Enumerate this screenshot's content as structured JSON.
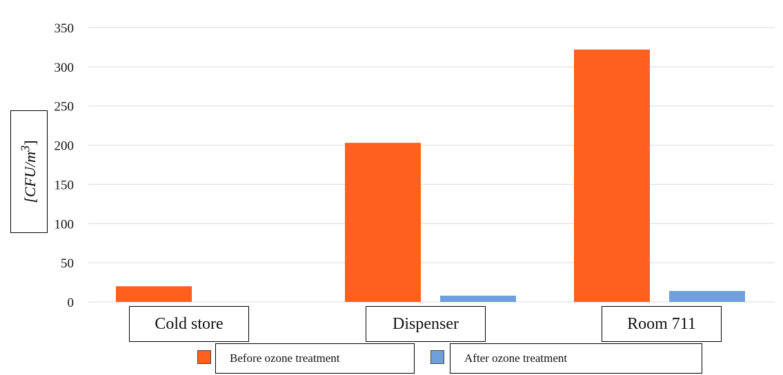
{
  "chart_data": {
    "type": "bar",
    "categories": [
      "Cold store",
      "Dispenser",
      "Room 711"
    ],
    "series": [
      {
        "name": "Before ozone treatment",
        "values": [
          20,
          203,
          322
        ],
        "color": "#ff5f1f"
      },
      {
        "name": "After ozone treatment",
        "values": [
          0,
          8,
          14
        ],
        "color": "#6fa0dc"
      }
    ],
    "ylabel_prefix": "[CFU/m",
    "ylabel_sup": "3",
    "ylabel_suffix": "]",
    "yticks": [
      "0",
      "50",
      "100",
      "150",
      "200",
      "250",
      "300",
      "350"
    ],
    "ylim": [
      0,
      350
    ],
    "grid": true,
    "legend_position": "bottom"
  }
}
